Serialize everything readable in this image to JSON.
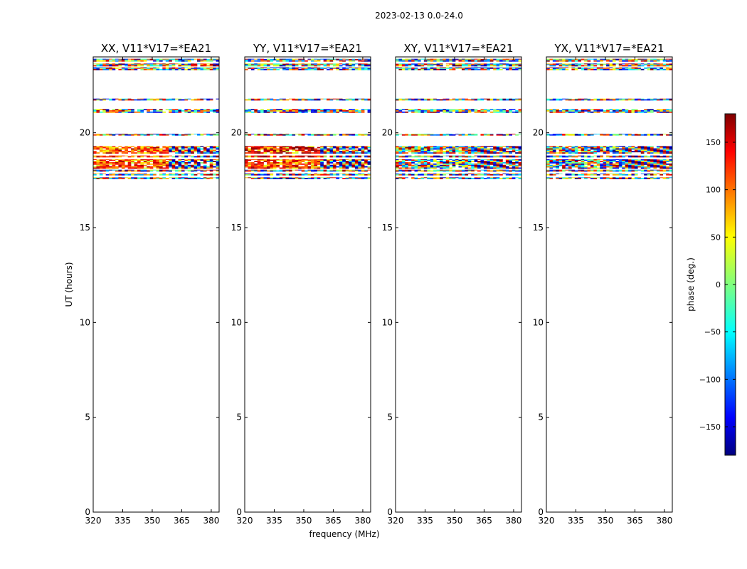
{
  "chart_data": {
    "type": "heatmap",
    "title": "2023-02-13 0.0-24.0",
    "xlabel": "frequency (MHz)",
    "ylabel": "UT (hours)",
    "xlim": [
      320,
      384
    ],
    "ylim": [
      0,
      24
    ],
    "xticks": [
      320,
      335,
      350,
      365,
      380
    ],
    "yticks": [
      0,
      5,
      10,
      15,
      20
    ],
    "panels": [
      {
        "title": "XX, V11*V17=*EA21",
        "mode": "XX"
      },
      {
        "title": "YY, V11*V17=*EA21",
        "mode": "YY"
      },
      {
        "title": "XY, V11*V17=*EA21",
        "mode": "XY"
      },
      {
        "title": "YX, V11*V17=*EA21",
        "mode": "YX"
      }
    ],
    "data_bands_hours": [
      [
        17.55,
        17.65
      ],
      [
        17.75,
        17.85
      ],
      [
        17.95,
        18.05
      ],
      [
        18.1,
        18.6
      ],
      [
        18.7,
        18.8
      ],
      [
        18.9,
        19.3
      ],
      [
        19.85,
        19.95
      ],
      [
        21.05,
        21.25
      ],
      [
        21.7,
        21.8
      ],
      [
        23.3,
        23.45
      ],
      [
        23.5,
        23.65
      ],
      [
        23.75,
        23.9
      ]
    ],
    "colorbar": {
      "label": "phase (deg.)",
      "range": [
        -180,
        180
      ],
      "ticks": [
        150,
        100,
        50,
        0,
        -50,
        -100,
        -150
      ],
      "tick_labels": [
        "150",
        "100",
        "50",
        "0",
        "−50",
        "−100",
        "−150"
      ],
      "colormap": "jet"
    }
  }
}
